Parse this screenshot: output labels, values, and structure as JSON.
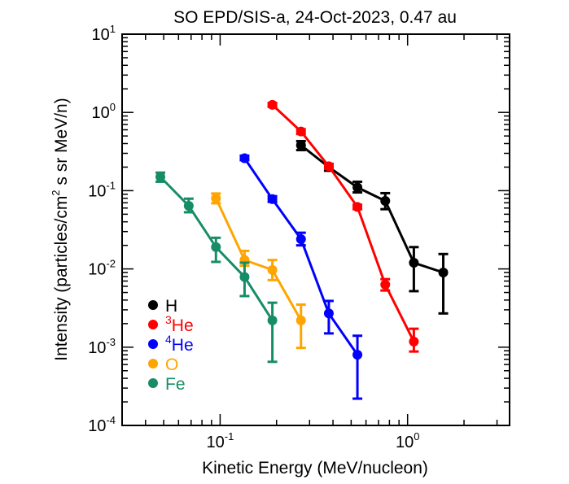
{
  "chart_data": {
    "type": "scatter",
    "title": "SO EPD/SIS-a, 24-Oct-2023, 0.47 au",
    "xlabel": "Kinetic Energy (MeV/nucleon)",
    "ylabel": {
      "before": "Intensity (particles/cm",
      "sup": "2",
      "after": " s sr MeV/n)"
    },
    "xscale": "log",
    "yscale": "log",
    "xlim": [
      0.03,
      3.5
    ],
    "ylim": [
      0.0001,
      10
    ],
    "x_ticks": [
      {
        "value": 0.1,
        "base": "10",
        "exp": "-1"
      },
      {
        "value": 1,
        "base": "10",
        "exp": "0"
      }
    ],
    "y_ticks": [
      {
        "value": 0.0001,
        "base": "10",
        "exp": "-4"
      },
      {
        "value": 0.001,
        "base": "10",
        "exp": "-3"
      },
      {
        "value": 0.01,
        "base": "10",
        "exp": "-2"
      },
      {
        "value": 0.1,
        "base": "10",
        "exp": "-1"
      },
      {
        "value": 1,
        "base": "10",
        "exp": "0"
      },
      {
        "value": 10,
        "base": "10",
        "exp": "1"
      }
    ],
    "legend_position": "bottom-left",
    "series": [
      {
        "name": "H",
        "name_sup": "",
        "color": "#000000",
        "x": [
          0.27,
          0.38,
          0.54,
          0.76,
          1.08,
          1.55
        ],
        "y": [
          0.38,
          0.2,
          0.11,
          0.074,
          0.012,
          0.009
        ],
        "y_low": [
          0.33,
          0.18,
          0.095,
          0.058,
          0.0052,
          0.0027
        ],
        "y_high": [
          0.43,
          0.22,
          0.13,
          0.093,
          0.019,
          0.0155
        ]
      },
      {
        "name": "He",
        "name_sup": "3",
        "color": "#ff0000",
        "x": [
          0.19,
          0.27,
          0.38,
          0.54,
          0.76,
          1.08
        ],
        "y": [
          1.25,
          0.57,
          0.205,
          0.062,
          0.0063,
          0.00118
        ],
        "y_low": [
          1.18,
          0.53,
          0.19,
          0.058,
          0.0053,
          0.00088
        ],
        "y_high": [
          1.32,
          0.61,
          0.22,
          0.066,
          0.0074,
          0.00172
        ]
      },
      {
        "name": "He",
        "name_sup": "4",
        "color": "#0000ff",
        "x": [
          0.135,
          0.19,
          0.27,
          0.38,
          0.54
        ],
        "y": [
          0.26,
          0.078,
          0.024,
          0.0027,
          0.0008
        ],
        "y_low": [
          0.245,
          0.072,
          0.02,
          0.0015,
          0.00022
        ],
        "y_high": [
          0.28,
          0.085,
          0.029,
          0.0039,
          0.0014
        ]
      },
      {
        "name": "O",
        "name_sup": "",
        "color": "#ffa500",
        "x": [
          0.095,
          0.135,
          0.19,
          0.27
        ],
        "y": [
          0.08,
          0.013,
          0.0097,
          0.0022
        ],
        "y_low": [
          0.069,
          0.011,
          0.0072,
          0.00098
        ],
        "y_high": [
          0.092,
          0.017,
          0.013,
          0.0035
        ]
      },
      {
        "name": "Fe",
        "name_sup": "",
        "color": "#178d67",
        "x": [
          0.048,
          0.068,
          0.095,
          0.135,
          0.19
        ],
        "y": [
          0.15,
          0.064,
          0.019,
          0.0079,
          0.0022
        ],
        "y_low": [
          0.13,
          0.053,
          0.0123,
          0.0045,
          0.00065
        ],
        "y_high": [
          0.17,
          0.079,
          0.025,
          0.012,
          0.0037
        ]
      }
    ]
  }
}
